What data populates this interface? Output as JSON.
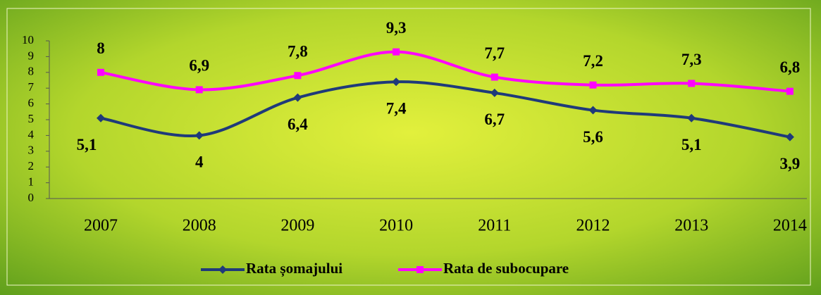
{
  "chart_data": {
    "type": "line",
    "categories": [
      "2007",
      "2008",
      "2009",
      "2010",
      "2011",
      "2012",
      "2013",
      "2014"
    ],
    "series": [
      {
        "name": "Rata șomajului",
        "color": "#1f3a7a",
        "marker": "diamond",
        "values": [
          5.1,
          4,
          6.4,
          7.4,
          6.7,
          5.6,
          5.1,
          3.9
        ],
        "value_labels": [
          "5,1",
          "4",
          "6,4",
          "7,4",
          "6,7",
          "5,6",
          "5,1",
          "3,9"
        ]
      },
      {
        "name": "Rata de subocupare",
        "color": "#ff00ff",
        "marker": "square",
        "values": [
          8,
          6.9,
          7.8,
          9.3,
          7.7,
          7.2,
          7.3,
          6.8
        ],
        "value_labels": [
          "8",
          "6,9",
          "7,8",
          "9,3",
          "7,7",
          "7,2",
          "7,3",
          "6,8"
        ]
      }
    ],
    "ylim": [
      0,
      10
    ],
    "yticks": [
      0,
      1,
      2,
      3,
      4,
      5,
      6,
      7,
      8,
      9,
      10
    ],
    "legend": "bottom",
    "smooth": true
  }
}
